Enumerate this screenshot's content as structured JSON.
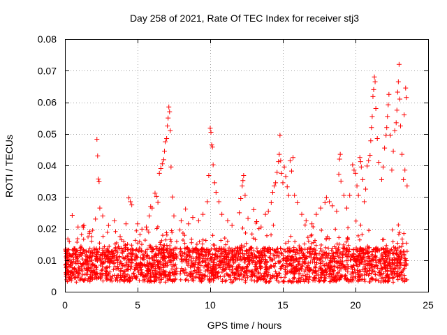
{
  "chart_data": {
    "type": "scatter",
    "title": "Day 258 of 2021, Rate Of TEC Index for receiver stj3",
    "xlabel": "GPS time / hours",
    "ylabel": "ROTI / TECUs",
    "xlim": [
      0,
      25
    ],
    "ylim": [
      0,
      0.08
    ],
    "xticks": [
      0,
      5,
      10,
      15,
      20,
      25
    ],
    "xtick_labels": [
      "0",
      "5",
      "10",
      "15",
      "20",
      "25"
    ],
    "yticks": [
      0,
      0.01,
      0.02,
      0.03,
      0.04,
      0.05,
      0.06,
      0.07,
      0.08
    ],
    "ytick_labels": [
      "0",
      "0.01",
      "0.02",
      "0.03",
      "0.04",
      "0.05",
      "0.06",
      "0.07",
      "0.08"
    ],
    "grid": true,
    "marker": "+",
    "color": "#ff0000",
    "data_gap_hours": [
      7.7,
      7.9
    ],
    "x_end": 23.55,
    "series": [
      {
        "name": "ROTI",
        "points": [
          [
            0.5,
            0.0242
          ],
          [
            0.9,
            0.0205
          ],
          [
            1.3,
            0.021
          ],
          [
            1.7,
            0.0185
          ],
          [
            2.1,
            0.023
          ],
          [
            2.2,
            0.0483
          ],
          [
            2.25,
            0.043
          ],
          [
            2.3,
            0.0357
          ],
          [
            2.35,
            0.0348
          ],
          [
            2.4,
            0.0265
          ],
          [
            2.6,
            0.024
          ],
          [
            3.0,
            0.021
          ],
          [
            3.4,
            0.0225
          ],
          [
            3.8,
            0.0175
          ],
          [
            4.2,
            0.0215
          ],
          [
            4.4,
            0.0297
          ],
          [
            4.5,
            0.0285
          ],
          [
            4.6,
            0.0275
          ],
          [
            5.0,
            0.0215
          ],
          [
            5.3,
            0.0198
          ],
          [
            5.6,
            0.0205
          ],
          [
            5.8,
            0.024
          ],
          [
            5.9,
            0.027
          ],
          [
            6.0,
            0.0265
          ],
          [
            6.2,
            0.0312
          ],
          [
            6.3,
            0.0302
          ],
          [
            6.4,
            0.0283
          ],
          [
            6.5,
            0.0375
          ],
          [
            6.6,
            0.039
          ],
          [
            6.7,
            0.0405
          ],
          [
            6.8,
            0.0418
          ],
          [
            6.85,
            0.0445
          ],
          [
            6.9,
            0.0475
          ],
          [
            7.0,
            0.0485
          ],
          [
            7.05,
            0.0525
          ],
          [
            7.1,
            0.055
          ],
          [
            7.15,
            0.0585
          ],
          [
            7.2,
            0.057
          ],
          [
            7.25,
            0.051
          ],
          [
            7.3,
            0.0395
          ],
          [
            7.4,
            0.03
          ],
          [
            7.5,
            0.024
          ],
          [
            8.0,
            0.0225
          ],
          [
            8.3,
            0.0262
          ],
          [
            8.5,
            0.0215
          ],
          [
            8.8,
            0.0235
          ],
          [
            9.2,
            0.0225
          ],
          [
            9.5,
            0.0245
          ],
          [
            9.8,
            0.0285
          ],
          [
            9.9,
            0.0368
          ],
          [
            10.0,
            0.0518
          ],
          [
            10.05,
            0.0505
          ],
          [
            10.1,
            0.0465
          ],
          [
            10.15,
            0.0458
          ],
          [
            10.2,
            0.0402
          ],
          [
            10.3,
            0.0345
          ],
          [
            10.4,
            0.0315
          ],
          [
            10.6,
            0.0285
          ],
          [
            10.8,
            0.0245
          ],
          [
            11.2,
            0.0225
          ],
          [
            11.5,
            0.021
          ],
          [
            12.0,
            0.025
          ],
          [
            12.1,
            0.0295
          ],
          [
            12.2,
            0.0335
          ],
          [
            12.25,
            0.0352
          ],
          [
            12.3,
            0.0368
          ],
          [
            12.4,
            0.0305
          ],
          [
            12.6,
            0.0232
          ],
          [
            13.0,
            0.026
          ],
          [
            13.2,
            0.0222
          ],
          [
            13.5,
            0.0205
          ],
          [
            13.8,
            0.0245
          ],
          [
            14.0,
            0.0255
          ],
          [
            14.2,
            0.0282
          ],
          [
            14.3,
            0.0315
          ],
          [
            14.4,
            0.0335
          ],
          [
            14.5,
            0.0345
          ],
          [
            14.6,
            0.0378
          ],
          [
            14.7,
            0.0412
          ],
          [
            14.75,
            0.0435
          ],
          [
            14.8,
            0.0495
          ],
          [
            14.85,
            0.0415
          ],
          [
            14.9,
            0.0375
          ],
          [
            15.0,
            0.0345
          ],
          [
            15.1,
            0.0395
          ],
          [
            15.2,
            0.0365
          ],
          [
            15.3,
            0.0332
          ],
          [
            15.4,
            0.0305
          ],
          [
            15.5,
            0.0415
          ],
          [
            15.6,
            0.0382
          ],
          [
            15.7,
            0.0425
          ],
          [
            15.8,
            0.0305
          ],
          [
            16.0,
            0.0282
          ],
          [
            16.3,
            0.0245
          ],
          [
            16.6,
            0.0225
          ],
          [
            17.0,
            0.0215
          ],
          [
            17.3,
            0.0245
          ],
          [
            17.6,
            0.0265
          ],
          [
            17.9,
            0.0282
          ],
          [
            18.0,
            0.0298
          ],
          [
            18.2,
            0.0285
          ],
          [
            18.4,
            0.0272
          ],
          [
            18.7,
            0.0255
          ],
          [
            18.85,
            0.0372
          ],
          [
            18.9,
            0.042
          ],
          [
            18.95,
            0.0435
          ],
          [
            19.0,
            0.035
          ],
          [
            19.2,
            0.0305
          ],
          [
            19.4,
            0.0265
          ],
          [
            19.6,
            0.0305
          ],
          [
            19.8,
            0.0402
          ],
          [
            19.9,
            0.0385
          ],
          [
            20.0,
            0.0375
          ],
          [
            20.1,
            0.0335
          ],
          [
            20.2,
            0.0305
          ],
          [
            20.3,
            0.0425
          ],
          [
            20.35,
            0.0412
          ],
          [
            20.4,
            0.0395
          ],
          [
            20.5,
            0.0355
          ],
          [
            20.6,
            0.0285
          ],
          [
            20.7,
            0.0325
          ],
          [
            20.8,
            0.0398
          ],
          [
            20.9,
            0.0415
          ],
          [
            21.0,
            0.0432
          ],
          [
            21.05,
            0.0478
          ],
          [
            21.1,
            0.052
          ],
          [
            21.15,
            0.0555
          ],
          [
            21.2,
            0.0618
          ],
          [
            21.25,
            0.064
          ],
          [
            21.3,
            0.068
          ],
          [
            21.35,
            0.0665
          ],
          [
            21.4,
            0.058
          ],
          [
            21.5,
            0.0485
          ],
          [
            21.6,
            0.041
          ],
          [
            21.8,
            0.0355
          ],
          [
            21.9,
            0.0395
          ],
          [
            22.0,
            0.0455
          ],
          [
            22.1,
            0.0495
          ],
          [
            22.15,
            0.052
          ],
          [
            22.2,
            0.0555
          ],
          [
            22.25,
            0.0592
          ],
          [
            22.3,
            0.0625
          ],
          [
            22.4,
            0.0495
          ],
          [
            22.5,
            0.0385
          ],
          [
            22.6,
            0.0445
          ],
          [
            22.7,
            0.051
          ],
          [
            22.8,
            0.0535
          ],
          [
            22.85,
            0.0575
          ],
          [
            22.9,
            0.0632
          ],
          [
            22.95,
            0.0665
          ],
          [
            23.0,
            0.072
          ],
          [
            23.05,
            0.061
          ],
          [
            23.1,
            0.0525
          ],
          [
            23.2,
            0.0435
          ],
          [
            23.3,
            0.0355
          ],
          [
            23.35,
            0.056
          ],
          [
            23.4,
            0.0385
          ],
          [
            23.45,
            0.0645
          ],
          [
            23.5,
            0.0615
          ],
          [
            23.55,
            0.0335
          ]
        ]
      }
    ]
  }
}
